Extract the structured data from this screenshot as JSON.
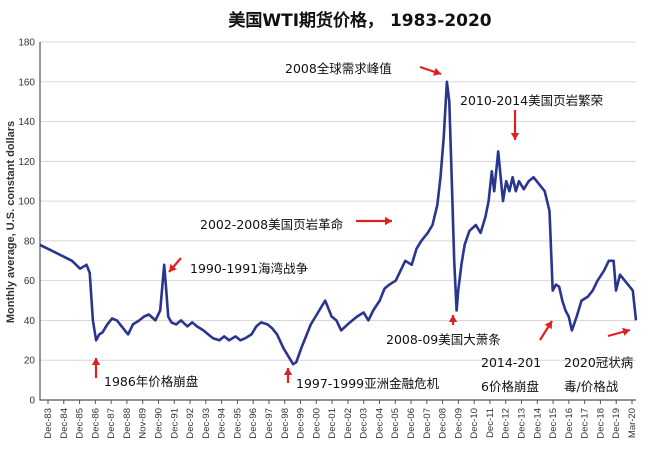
{
  "chart_data": {
    "type": "line",
    "title": "美国WTI期货价格， 1983-2020",
    "ylabel": "Monthly average, U.S. constant dollars",
    "xlabel": "",
    "ylim": [
      0,
      180
    ],
    "yticks": [
      0,
      20,
      40,
      60,
      80,
      100,
      120,
      140,
      160,
      180
    ],
    "grid": "horizontal",
    "colors": {
      "series": "#2a3590",
      "arrows": "#e02020"
    },
    "xticks": [
      "Dec-83",
      "Dec-84",
      "Dec-85",
      "Dec-86",
      "Dec-87",
      "Dec-88",
      "Nov-89",
      "Dec-90",
      "Dec-91",
      "Dec-92",
      "Dec-93",
      "Dec-94",
      "Dec-95",
      "Dec-96",
      "Dec-97",
      "Dec-98",
      "Dec-99",
      "Dec-00",
      "Dec-01",
      "Dec-02",
      "Dec-03",
      "Dec-04",
      "Dec-05",
      "Dec-06",
      "Dec-07",
      "Dec-08",
      "Dec-09",
      "Dec-10",
      "Dec-11",
      "Dec-12",
      "Dec-13",
      "Dec-14",
      "Dec-15",
      "Dec-16",
      "Dec-17",
      "Dec-18",
      "Dec-19",
      "Mar-20"
    ],
    "series": [
      {
        "x": [
          1983.0,
          1983.5,
          1984.0,
          1984.5,
          1985.0,
          1985.5,
          1985.9,
          1986.1,
          1986.3,
          1986.5,
          1986.7,
          1986.9,
          1987.2,
          1987.5,
          1987.8,
          1988.2,
          1988.5,
          1988.8,
          1989.2,
          1989.5,
          1989.8,
          1990.2,
          1990.5,
          1990.75,
          1990.85,
          1991.0,
          1991.2,
          1991.5,
          1991.8,
          1992.2,
          1992.5,
          1992.8,
          1993.2,
          1993.5,
          1993.8,
          1994.2,
          1994.5,
          1994.8,
          1995.2,
          1995.5,
          1995.8,
          1996.2,
          1996.5,
          1996.8,
          1997.2,
          1997.5,
          1997.8,
          1998.2,
          1998.5,
          1998.8,
          1999.0,
          1999.3,
          1999.6,
          1999.9,
          2000.2,
          2000.5,
          2000.8,
          2001.2,
          2001.5,
          2001.8,
          2002.2,
          2002.5,
          2002.8,
          2003.2,
          2003.5,
          2003.8,
          2004.2,
          2004.5,
          2004.8,
          2005.2,
          2005.5,
          2005.8,
          2006.2,
          2006.5,
          2006.8,
          2007.2,
          2007.5,
          2007.8,
          2008.0,
          2008.2,
          2008.4,
          2008.55,
          2008.7,
          2008.85,
          2009.0,
          2009.1,
          2009.3,
          2009.5,
          2009.8,
          2010.2,
          2010.5,
          2010.8,
          2011.0,
          2011.2,
          2011.35,
          2011.6,
          2011.9,
          2012.1,
          2012.3,
          2012.5,
          2012.7,
          2012.9,
          2013.2,
          2013.5,
          2013.8,
          2014.2,
          2014.5,
          2014.8,
          2015.0,
          2015.2,
          2015.4,
          2015.6,
          2015.8,
          2016.0,
          2016.2,
          2016.5,
          2016.8,
          2017.2,
          2017.5,
          2017.8,
          2018.2,
          2018.5,
          2018.8,
          2018.95,
          2019.2,
          2019.5,
          2019.8,
          2020.0,
          2020.2
        ],
        "y": [
          78,
          76,
          74,
          72,
          70,
          66,
          68,
          64,
          40,
          30,
          33,
          34,
          38,
          41,
          40,
          36,
          33,
          38,
          40,
          42,
          43,
          40,
          45,
          68,
          58,
          42,
          39,
          38,
          40,
          37,
          39,
          37,
          35,
          33,
          31,
          30,
          32,
          30,
          32,
          30,
          31,
          33,
          37,
          39,
          38,
          36,
          33,
          26,
          22,
          18,
          19,
          26,
          32,
          38,
          42,
          46,
          50,
          42,
          40,
          35,
          38,
          40,
          42,
          44,
          40,
          45,
          50,
          56,
          58,
          60,
          65,
          70,
          68,
          76,
          80,
          84,
          88,
          98,
          112,
          132,
          160,
          150,
          110,
          70,
          45,
          55,
          68,
          78,
          85,
          88,
          84,
          92,
          100,
          115,
          105,
          125,
          100,
          110,
          105,
          112,
          105,
          110,
          106,
          110,
          112,
          108,
          105,
          95,
          55,
          58,
          57,
          50,
          45,
          42,
          35,
          42,
          50,
          52,
          55,
          60,
          65,
          70,
          70,
          55,
          63,
          60,
          57,
          55,
          40
        ]
      }
    ],
    "annotations": [
      {
        "text": "2008全球需求峰值"
      },
      {
        "text": "2010-2014美国页岩繁荣"
      },
      {
        "text": "2002-2008美国页岩革命"
      },
      {
        "text": "1990-1991海湾战争"
      },
      {
        "text": "2008-09美国大萧条"
      },
      {
        "text": "2014-201"
      },
      {
        "text": "6价格崩盘"
      },
      {
        "text": "2020冠状病"
      },
      {
        "text": "毒/价格战"
      },
      {
        "text": "1986年价格崩盘"
      },
      {
        "text": "1997-1999亚洲金融危机"
      }
    ]
  }
}
